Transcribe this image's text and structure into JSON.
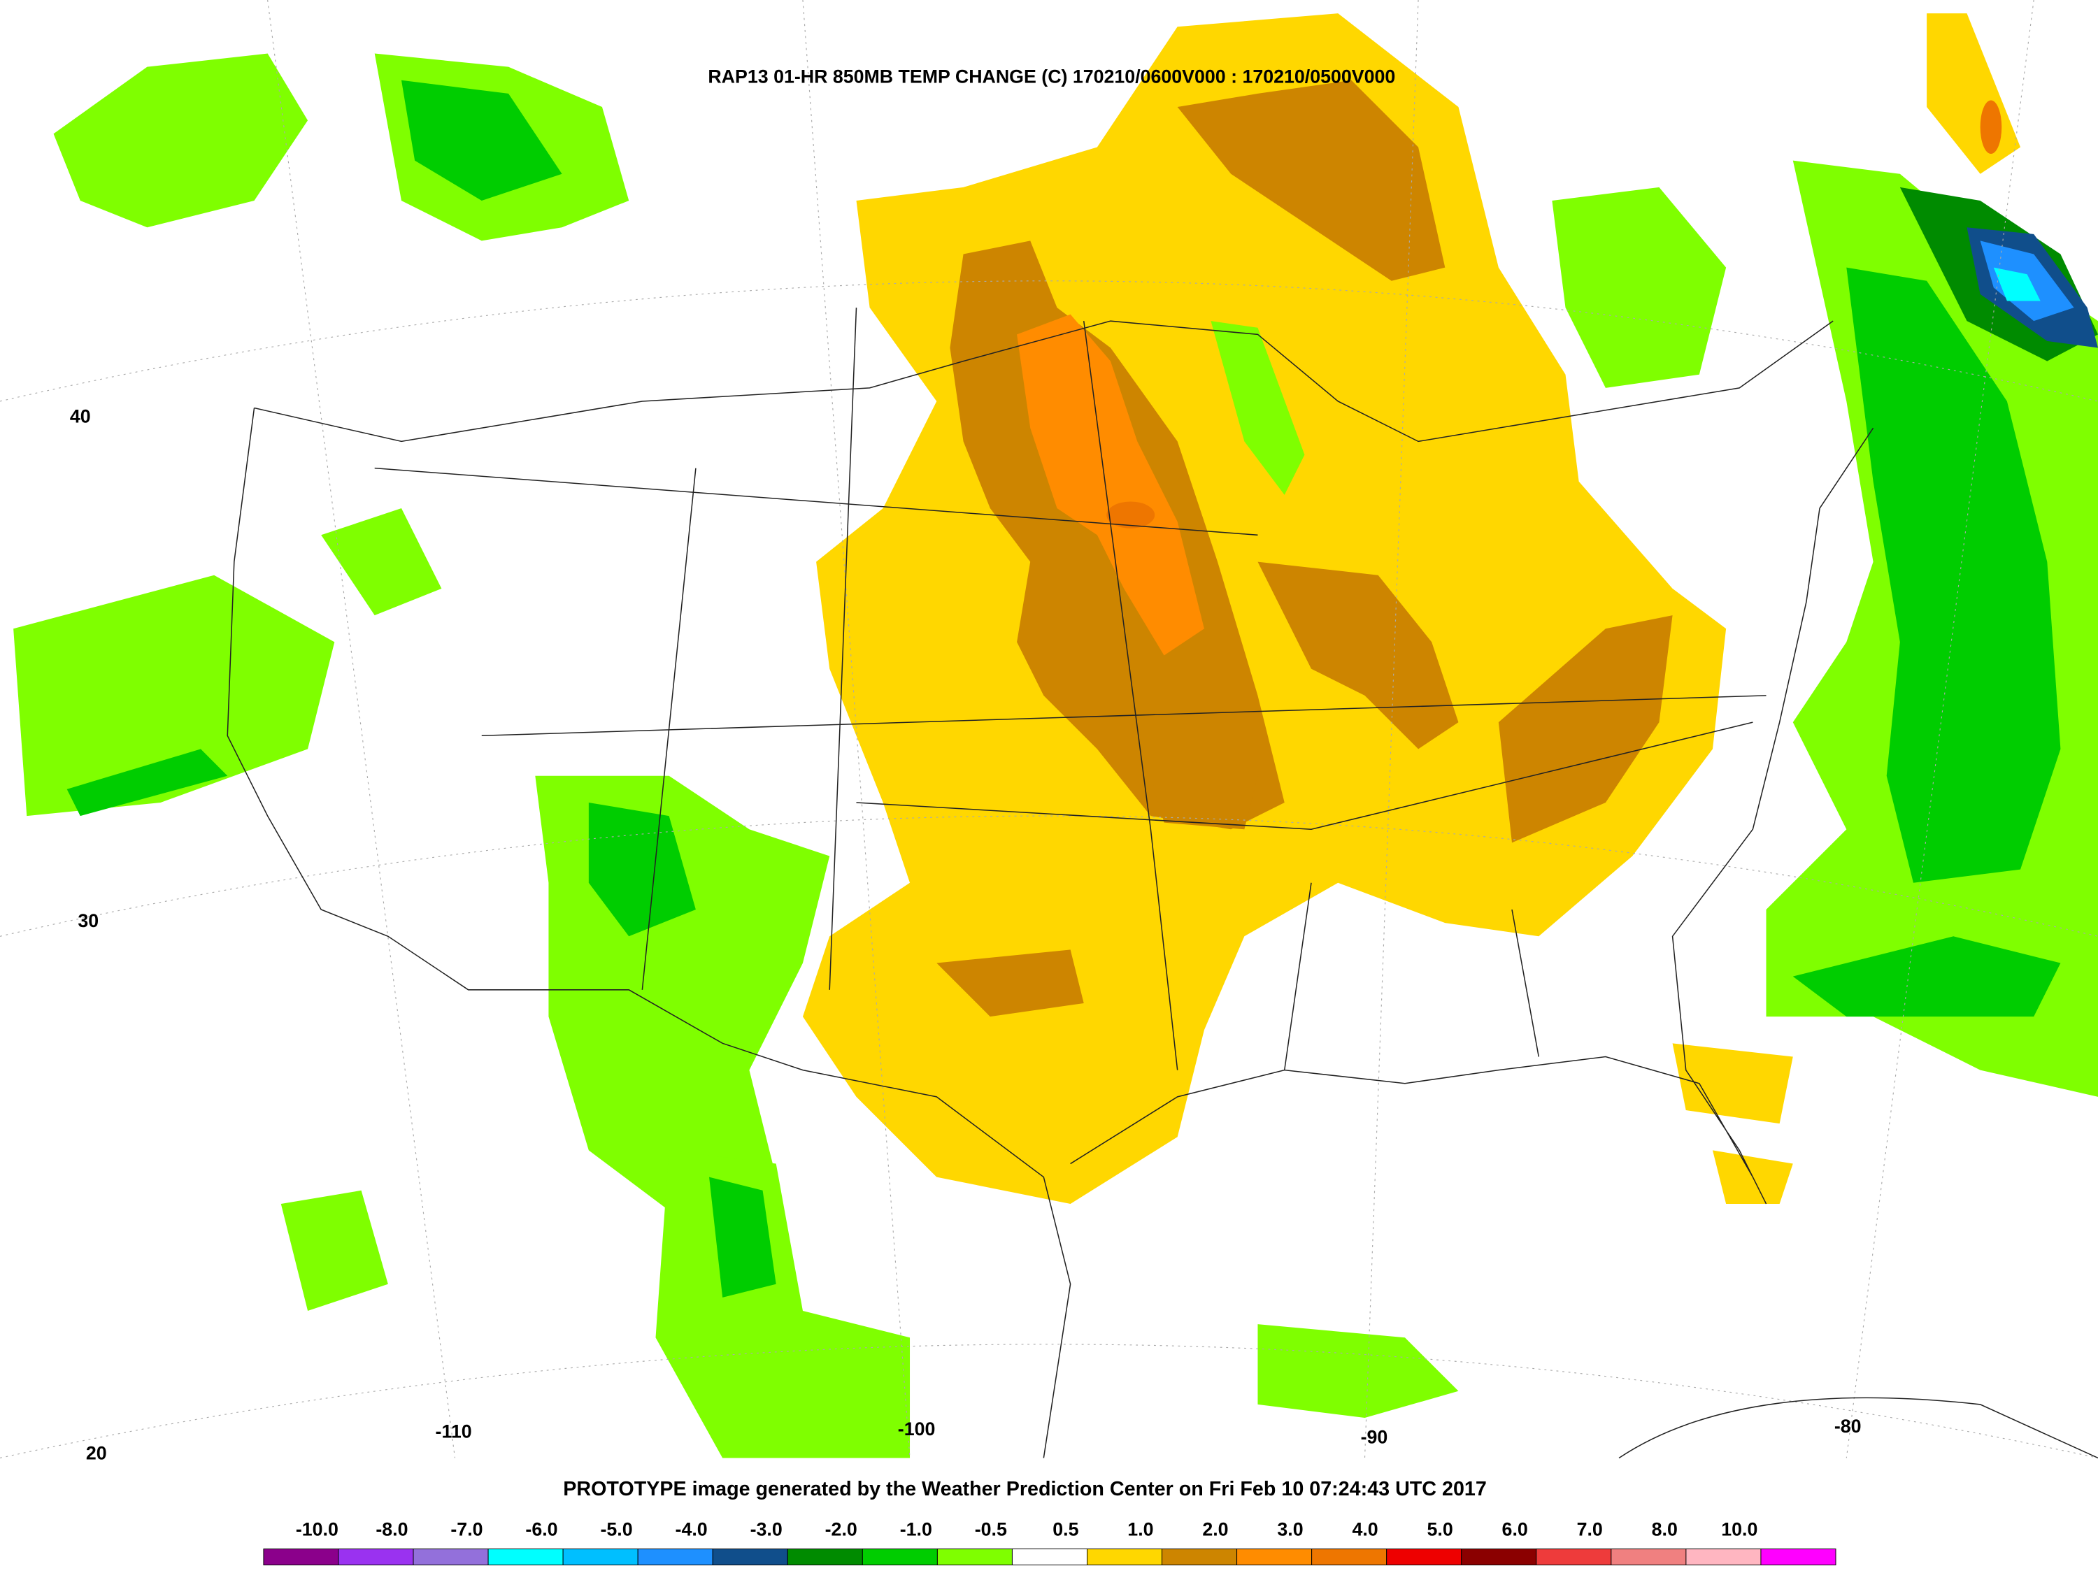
{
  "header": {
    "title": "RAP13 01-HR 850MB TEMP CHANGE (C) 170210/0600V000 : 170210/0500V000"
  },
  "map_labels": {
    "latitudes": [
      "40",
      "30",
      "20"
    ],
    "longitudes": [
      "-110",
      "-100",
      "-90",
      "-80"
    ]
  },
  "footer": {
    "text": "PROTOTYPE image generated by the Weather Prediction Center on Fri Feb 10 07:24:43 UTC 2017"
  },
  "colorbar": {
    "labels": [
      "-10.0",
      "-8.0",
      "-7.0",
      "-6.0",
      "-5.0",
      "-4.0",
      "-3.0",
      "-2.0",
      "-1.0",
      "-0.5",
      "0.5",
      "1.0",
      "2.0",
      "3.0",
      "4.0",
      "5.0",
      "6.0",
      "7.0",
      "8.0",
      "10.0"
    ],
    "colors": [
      "#8b008b",
      "#9a32f0",
      "#9370db",
      "#00ffff",
      "#00bfff",
      "#1e90ff",
      "#104e8b",
      "#008b00",
      "#00cd00",
      "#7fff00",
      "#ffffff",
      "#ffd700",
      "#cd8500",
      "#ff8c00",
      "#ee7600",
      "#ee0000",
      "#8b0000",
      "#ee3b3b",
      "#f08080",
      "#ffb6c1",
      "#ff00ff"
    ]
  }
}
